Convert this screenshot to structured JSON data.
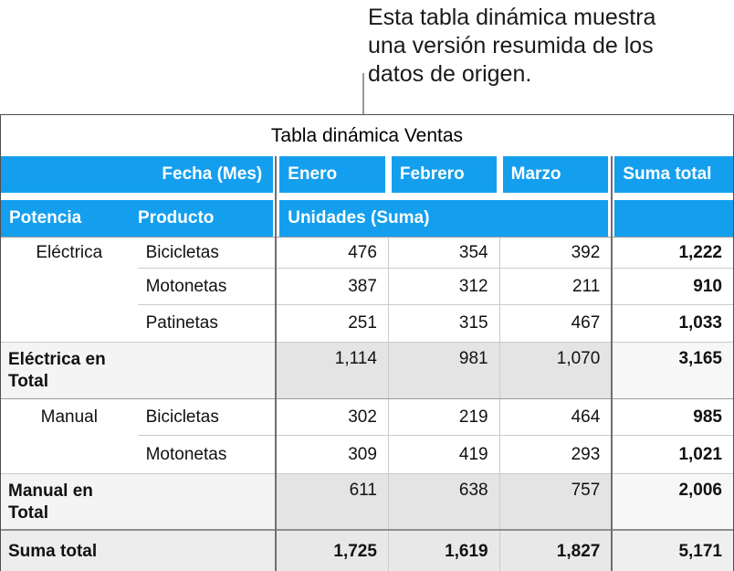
{
  "callout": {
    "lines": [
      "Esta tabla dinámica muestra",
      "una versión resumida de los",
      "datos de origen."
    ]
  },
  "pivot": {
    "title": "Tabla dinámica Ventas",
    "column_header": {
      "fecha": "Fecha (Mes)",
      "enero": "Enero",
      "febrero": "Febrero",
      "marzo": "Marzo",
      "suma_total": "Suma total"
    },
    "row_header": {
      "potencia": "Potencia",
      "producto": "Producto",
      "unidades": "Unidades (Suma)"
    },
    "groups": [
      {
        "name": "Eléctrica",
        "rows": [
          {
            "producto": "Bicicletas",
            "enero": "476",
            "febrero": "354",
            "marzo": "392",
            "suma": "1,222"
          },
          {
            "producto": "Motonetas",
            "enero": "387",
            "febrero": "312",
            "marzo": "211",
            "suma": "910"
          },
          {
            "producto": "Patinetas",
            "enero": "251",
            "febrero": "315",
            "marzo": "467",
            "suma": "1,033"
          }
        ],
        "total": {
          "label": "Eléctrica en Total",
          "enero": "1,114",
          "febrero": "981",
          "marzo": "1,070",
          "suma": "3,165"
        }
      },
      {
        "name": "Manual",
        "rows": [
          {
            "producto": "Bicicletas",
            "enero": "302",
            "febrero": "219",
            "marzo": "464",
            "suma": "985"
          },
          {
            "producto": "Motonetas",
            "enero": "309",
            "febrero": "419",
            "marzo": "293",
            "suma": "1,021"
          }
        ],
        "total": {
          "label": "Manual en Total",
          "enero": "611",
          "febrero": "638",
          "marzo": "757",
          "suma": "2,006"
        }
      }
    ],
    "grand_total": {
      "label": "Suma total",
      "enero": "1,725",
      "febrero": "1,619",
      "marzo": "1,827",
      "suma": "5,171"
    }
  },
  "colors": {
    "header_blue": "#149FEE",
    "dark_grid": "#6f6f6f",
    "light_grid": "#cbcbcb",
    "total_label_bg": "#F4F4F5",
    "total_value_bg": "#E4E4E5",
    "grand_row_bg": "#E8E8E9"
  }
}
